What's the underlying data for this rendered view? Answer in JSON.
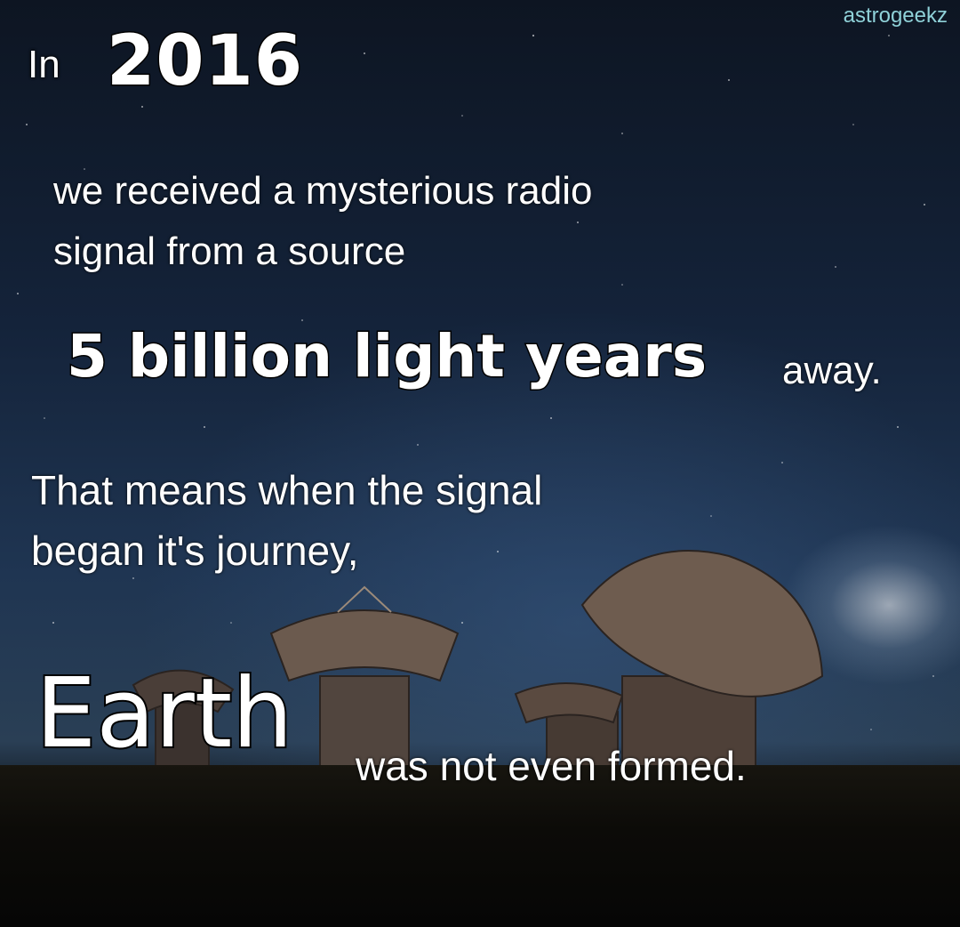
{
  "watermark": "astrogeekz",
  "headline": {
    "prefix": "In",
    "year": "2016"
  },
  "body": {
    "line_1": "we received a mysterious radio",
    "line_2": "signal from a source",
    "distance": "5 billion light years",
    "distance_suffix": "away.",
    "line_3": "That means when the signal",
    "line_4": "began it's journey,",
    "subject": "Earth",
    "conclusion": "was not even formed."
  },
  "colors": {
    "text": "#ffffff",
    "outline": "#000000",
    "watermark": "#8fd1d8",
    "sky": "#14233a"
  }
}
